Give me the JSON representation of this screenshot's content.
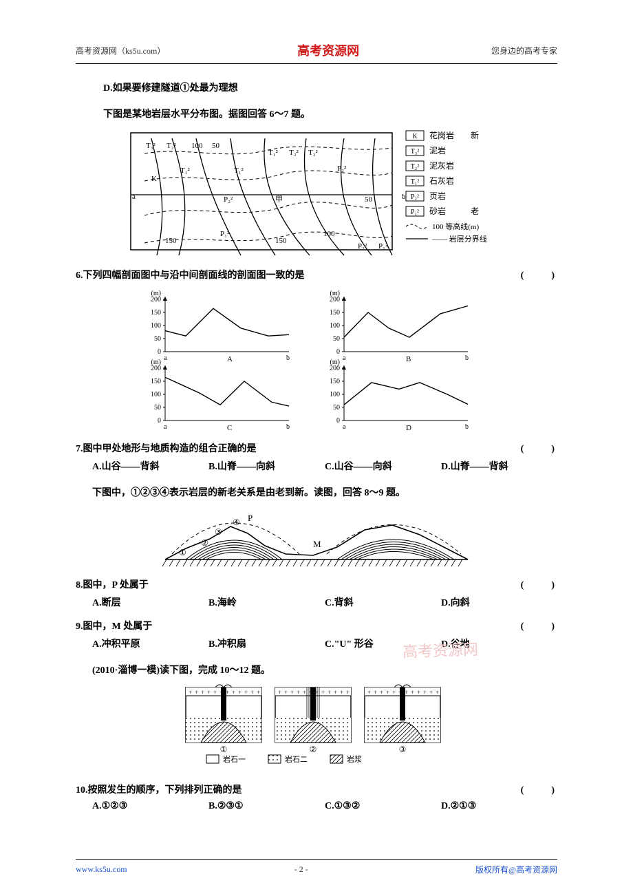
{
  "header": {
    "left": "高考资源网（ks5u.com）",
    "center": "高考资源网",
    "right": "您身边的高考专家"
  },
  "footer": {
    "left": "www.ks5u.com",
    "center": "- 2 -",
    "right": "版权所有@高考资源网"
  },
  "watermark": "高考资源网",
  "blank": "(　　)",
  "lines": {
    "optD": "D.如果要修建隧道①处最为理想",
    "intro67": "下图是某地岩层水平分布图。据图回答 6～7 题。",
    "q6": "6.下列四幅剖面图中与沿中间剖面线的剖面图一致的是",
    "q7": "7.图中甲处地形与地质构造的组合正确的是",
    "q7A": "A.山谷——背斜",
    "q7B": "B.山脊——向斜",
    "q7C": "C.山谷——向斜",
    "q7D": "D.山脊——背斜",
    "intro89": "下图中，①②③④表示岩层的新老关系是由老到新。读图，回答 8～9 题。",
    "q8": "8.图中，P 处属于",
    "q8A": "A.断层",
    "q8B": "B.海岭",
    "q8C": "C.背斜",
    "q8D": "D.向斜",
    "q9": "9.图中，M 处属于",
    "q9A": "A.冲积平原",
    "q9B": "B.冲积扇",
    "q9C": "C.\"U\" 形谷",
    "q9D": "D.谷地",
    "intro1012": "(2010·淄博一模)读下图，完成 10～12 题。",
    "q10": "10.按照发生的顺序，下列排列正确的是",
    "q10A": "A.①②③",
    "q10B": "B.②③①",
    "q10C": "C.①③②",
    "q10D": "D.②①③"
  },
  "geomap": {
    "stroke": "#000000",
    "fill": "#ffffff",
    "font_size": 11,
    "labels_left": [
      "T₃²",
      "T₂²",
      "T₁²",
      "K",
      "a"
    ],
    "labels_mid": [
      "100",
      "50",
      "T₁²",
      "T₂²",
      "T₃²",
      "P₂²",
      "甲",
      "P₁²",
      "150",
      "150",
      "100",
      "50",
      "b",
      "P₂²",
      "P₁²"
    ],
    "legend": [
      {
        "sym": "K",
        "txt": "花岗岩",
        "note": "新"
      },
      {
        "sym": "T₃²",
        "txt": "泥岩",
        "note": ""
      },
      {
        "sym": "T₂²",
        "txt": "泥灰岩",
        "note": ""
      },
      {
        "sym": "T₁²",
        "txt": "石灰岩",
        "note": ""
      },
      {
        "sym": "P₂²",
        "txt": "页岩",
        "note": ""
      },
      {
        "sym": "P₁²",
        "txt": "砂岩",
        "note": "老"
      }
    ],
    "legend_extra": [
      "100  等高线(m)",
      "—— 岩层分界线"
    ]
  },
  "profiles": {
    "stroke": "#000000",
    "font_size": 10,
    "ylabel": "(m)",
    "yticks": [
      "200",
      "150",
      "100",
      "50",
      "0"
    ],
    "xl": "a",
    "xr": "b",
    "panels": [
      "A",
      "B",
      "C",
      "D"
    ],
    "curves": {
      "A": [
        [
          0,
          80
        ],
        [
          30,
          60
        ],
        [
          70,
          165
        ],
        [
          110,
          90
        ],
        [
          150,
          60
        ],
        [
          180,
          65
        ]
      ],
      "B": [
        [
          0,
          55
        ],
        [
          35,
          150
        ],
        [
          65,
          90
        ],
        [
          95,
          55
        ],
        [
          140,
          145
        ],
        [
          180,
          175
        ]
      ],
      "C": [
        [
          0,
          165
        ],
        [
          50,
          105
        ],
        [
          80,
          60
        ],
        [
          115,
          150
        ],
        [
          155,
          70
        ],
        [
          180,
          55
        ]
      ],
      "D": [
        [
          0,
          60
        ],
        [
          40,
          145
        ],
        [
          80,
          120
        ],
        [
          110,
          145
        ],
        [
          150,
          100
        ],
        [
          180,
          62
        ]
      ]
    }
  },
  "fold_section": {
    "stroke": "#000000",
    "labels": [
      "①",
      "②",
      "③",
      "④",
      "P",
      "M"
    ]
  },
  "volcano": {
    "stroke": "#000000",
    "panel_labels": [
      "①",
      "②",
      "③"
    ],
    "legend": [
      {
        "sym": "blank",
        "txt": "岩石一"
      },
      {
        "sym": "dots",
        "txt": "岩石二"
      },
      {
        "sym": "hatch",
        "txt": "岩浆"
      }
    ]
  }
}
